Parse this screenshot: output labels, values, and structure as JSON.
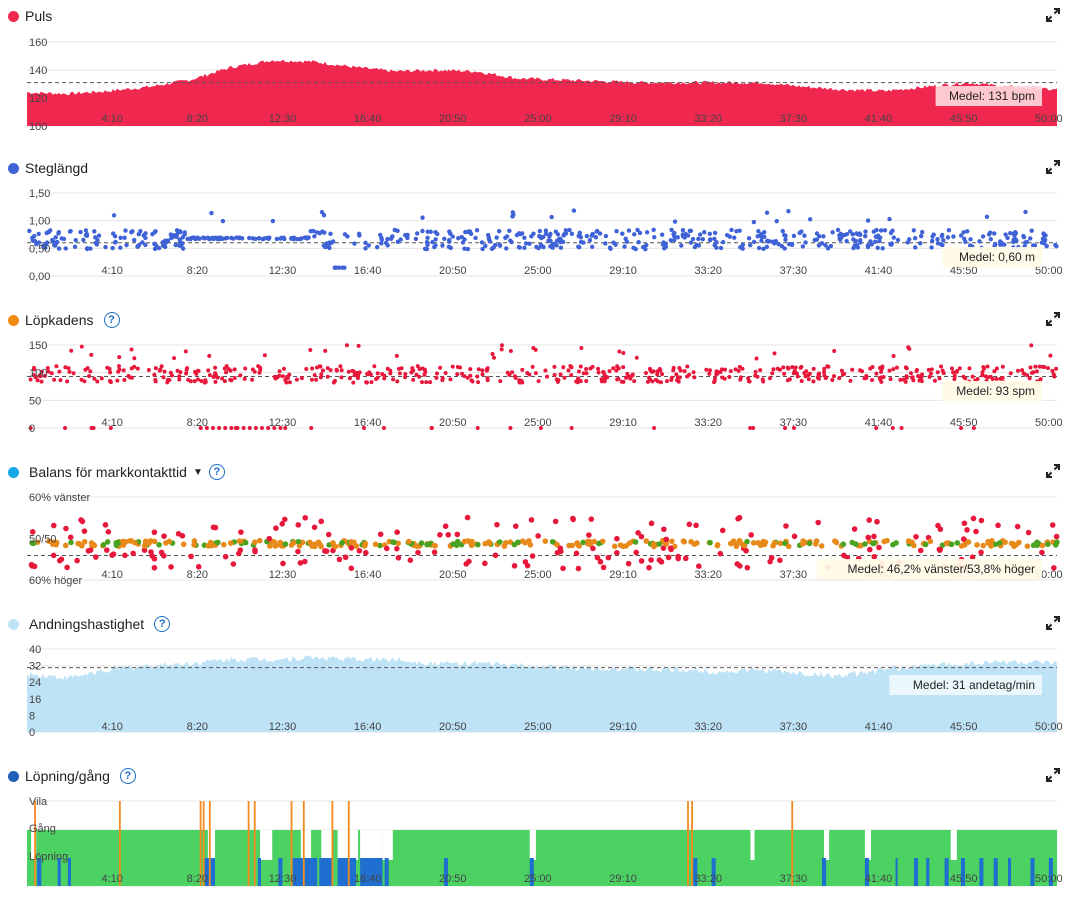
{
  "chart_data": [
    {
      "type": "area",
      "title": "Puls",
      "color": "#f0274f",
      "ylim": [
        100,
        160
      ],
      "yticks": [
        100,
        120,
        140,
        160
      ],
      "xticks": [
        "4:10",
        "8:20",
        "12:30",
        "16:40",
        "20:50",
        "25:00",
        "29:10",
        "33:20",
        "37:30",
        "41:40",
        "45:50",
        "50:00"
      ],
      "x_minutes": [
        0,
        2,
        4,
        6,
        8,
        10,
        12,
        14,
        16,
        18,
        20,
        22,
        24,
        26,
        28,
        30,
        32,
        34,
        36,
        38,
        40,
        42,
        44,
        46,
        48,
        50
      ],
      "y": [
        124,
        123,
        125,
        128,
        133,
        142,
        147,
        146,
        142,
        139,
        140,
        139,
        134,
        133,
        132,
        131,
        131,
        131,
        131,
        128,
        126,
        125,
        128,
        131,
        128,
        126
      ],
      "mean": 131,
      "mean_label": "Medel: 131 bpm"
    },
    {
      "type": "scatter",
      "title": "Steglängd",
      "color": "#3f62d6",
      "ylim": [
        0,
        1.5
      ],
      "yticks": [
        "0,00",
        "0,50",
        "1,00",
        "1,50"
      ],
      "xticks": [
        "4:10",
        "8:20",
        "12:30",
        "16:40",
        "20:50",
        "25:00",
        "29:10",
        "33:20",
        "37:30",
        "41:40",
        "45:50",
        "50:00"
      ],
      "mean": 0.6,
      "mean_label": "Medel: 0,60 m"
    },
    {
      "type": "scatter",
      "title": "Löpkadens",
      "color": "#e8183c",
      "ylim": [
        0,
        150
      ],
      "yticks": [
        "0",
        "50",
        "100",
        "150"
      ],
      "xticks": [
        "4:10",
        "8:20",
        "12:30",
        "16:40",
        "20:50",
        "25:00",
        "29:10",
        "33:20",
        "37:30",
        "41:40",
        "45:50",
        "50:00"
      ],
      "mean": 93,
      "mean_label": "Medel: 93 spm"
    },
    {
      "type": "scatter",
      "title": "Balans för markkontakttid",
      "colors": [
        "#e8183c",
        "#e88a1a",
        "#4aa320"
      ],
      "ylim": [
        -10,
        10
      ],
      "yticks": [
        "60% höger",
        "50/50",
        "60% vänster"
      ],
      "xticks": [
        "4:10",
        "8:20",
        "12:30",
        "16:40",
        "20:50",
        "25:00",
        "29:10",
        "33:20",
        "37:30",
        "41:40",
        "45:50",
        "50:00"
      ],
      "mean_label": "Medel: 46,2% vänster/53,8% höger"
    },
    {
      "type": "area",
      "title": "Andningshastighet",
      "color": "#bfe3f6",
      "ylim": [
        0,
        40
      ],
      "yticks": [
        "0",
        "8",
        "16",
        "24",
        "32",
        "40"
      ],
      "xticks": [
        "4:10",
        "8:20",
        "12:30",
        "16:40",
        "20:50",
        "25:00",
        "29:10",
        "33:20",
        "37:30",
        "41:40",
        "45:50",
        "50:00"
      ],
      "x_minutes": [
        0,
        2,
        4,
        6,
        8,
        10,
        12,
        14,
        16,
        18,
        20,
        22,
        24,
        26,
        28,
        30,
        32,
        34,
        36,
        38,
        40,
        42,
        44,
        46,
        48,
        50
      ],
      "y": [
        28,
        26,
        30,
        32,
        33,
        35,
        35,
        36,
        35,
        35,
        33,
        33,
        32,
        31,
        31,
        30,
        30,
        29,
        30,
        28,
        27,
        30,
        32,
        33,
        34,
        33
      ],
      "mean": 31,
      "mean_label": "Medel: 31 andetag/min"
    },
    {
      "type": "bar",
      "title": "Löpning/gång",
      "categories": [
        "Vila",
        "Gång",
        "Löpning"
      ],
      "colors": {
        "Gång": "#4cd163",
        "Löpning": "#1e6fd0",
        "Vila": "#f58a1f"
      },
      "xticks": [
        "4:10",
        "8:20",
        "12:30",
        "16:40",
        "20:50",
        "25:00",
        "29:10",
        "33:20",
        "37:30",
        "41:40",
        "45:50",
        "50:00"
      ]
    }
  ],
  "headers": {
    "puls": "Puls",
    "steg": "Steglängd",
    "kad": "Löpkadens",
    "bal": "Balans för markkontakttid",
    "and": "Andningshastighet",
    "lop": "Löpning/gång"
  },
  "help_glyph": "?",
  "caret_glyph": "▼"
}
